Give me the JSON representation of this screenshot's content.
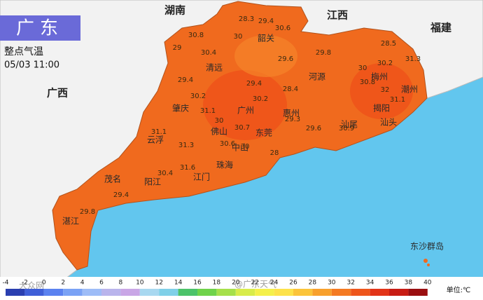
{
  "header": {
    "title": "广东",
    "subtitle": "整点气温",
    "time": "05/03 11:00"
  },
  "neighbors": [
    "湖南",
    "江西",
    "福建",
    "广西"
  ],
  "cities": [
    "韶关",
    "清远",
    "河源",
    "梅州",
    "潮州",
    "肇庆",
    "广州",
    "惠州",
    "揭阳",
    "汕头",
    "佛山",
    "东莞",
    "汕尾",
    "云浮",
    "中山",
    "珠海",
    "江门",
    "阳江",
    "茂名",
    "湛江",
    "东沙群岛"
  ],
  "readings": [
    28.3,
    29.4,
    30.6,
    30.8,
    30,
    29,
    30.4,
    29.8,
    28.5,
    31.3,
    29.6,
    30.2,
    30,
    29.4,
    29.4,
    28.4,
    32,
    30.8,
    30.2,
    30.2,
    31.1,
    31.1,
    30,
    29.3,
    29.6,
    30.9,
    30.7,
    30.6,
    31.1,
    31.3,
    30,
    28,
    31.6,
    30.4,
    29.4,
    29.8
  ],
  "legend": {
    "ticks": [
      -4,
      -2,
      0,
      2,
      4,
      6,
      8,
      10,
      12,
      14,
      16,
      18,
      20,
      22,
      24,
      26,
      28,
      30,
      32,
      34,
      36,
      38,
      40
    ],
    "colors": [
      "#2a3fb0",
      "#3f5fd8",
      "#5b82f0",
      "#7aa2f5",
      "#9dbcf7",
      "#b9b4ec",
      "#c9a6e6",
      "#a8d8f0",
      "#7fd0e8",
      "#4cc36a",
      "#6fd34a",
      "#a6e04a",
      "#d8ec4a",
      "#f4f04a",
      "#fde24a",
      "#fbc43a",
      "#f8a02c",
      "#f47a22",
      "#ee561c",
      "#e23418",
      "#c81c14",
      "#9a0e10"
    ],
    "unit": "单位:℃"
  },
  "watermarks": [
    "大众网",
    "@广东天气"
  ]
}
